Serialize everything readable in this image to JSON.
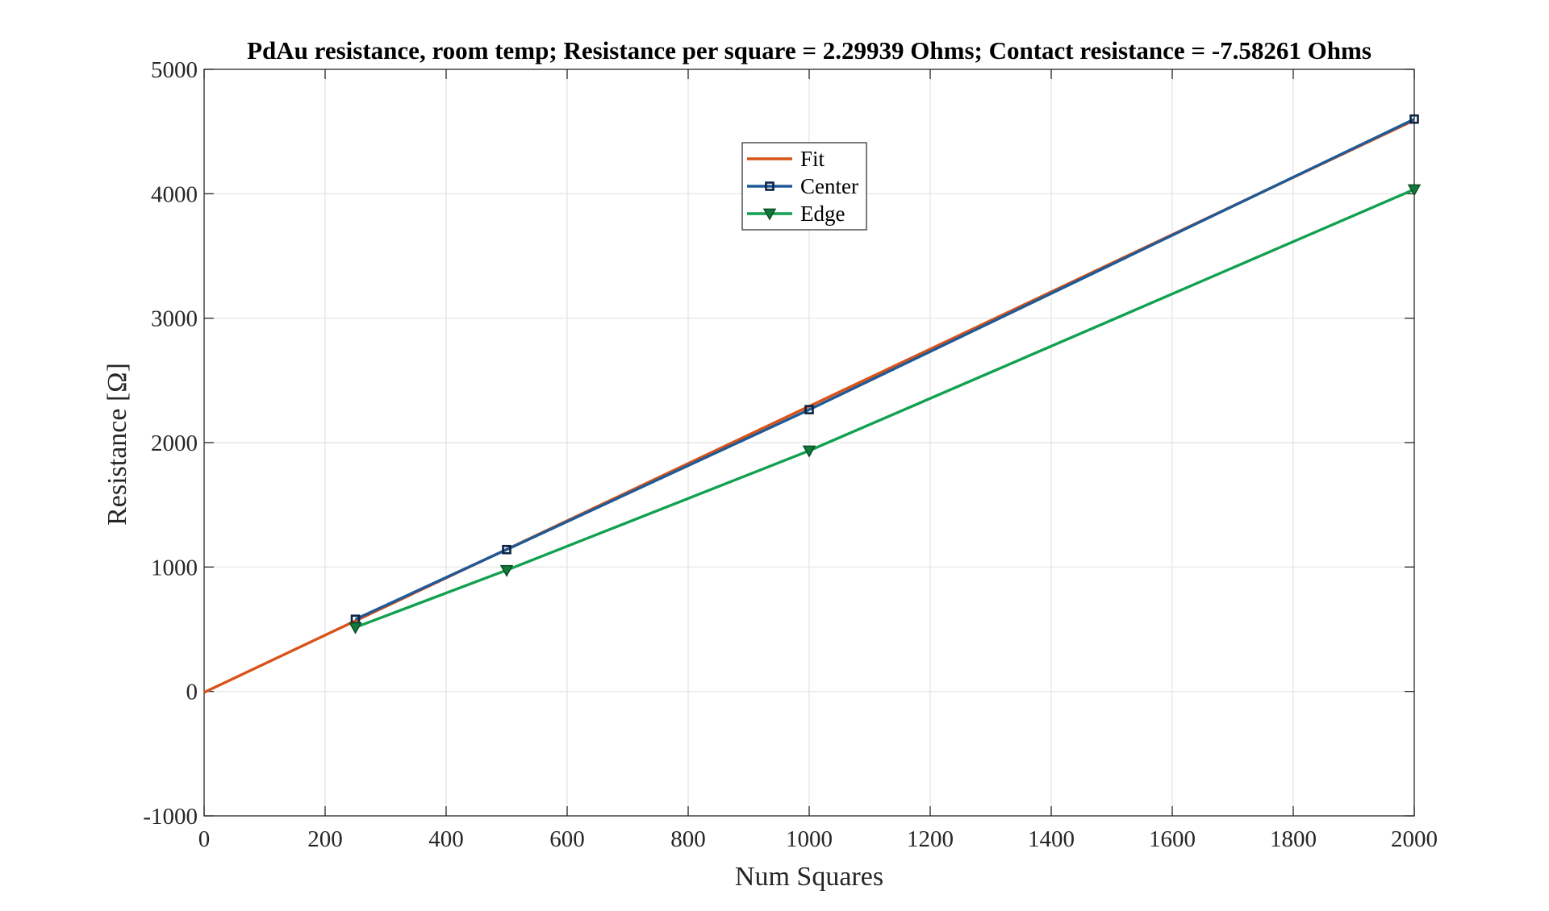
{
  "chart_data": {
    "type": "line",
    "title": "PdAu resistance, room temp; Resistance per square = 2.29939 Ohms; Contact resistance = -7.58261 Ohms",
    "xlabel": "Num Squares",
    "ylabel": "Resistance [Ω]",
    "xlim": [
      0,
      2000
    ],
    "ylim": [
      -1000,
      5000
    ],
    "xticks": [
      0,
      200,
      400,
      600,
      800,
      1000,
      1200,
      1400,
      1600,
      1800,
      2000
    ],
    "yticks": [
      -1000,
      0,
      1000,
      2000,
      3000,
      4000,
      5000
    ],
    "grid": true,
    "legend_position": "top-center",
    "series": [
      {
        "name": "Fit",
        "color": "#d95319",
        "marker": "none",
        "x": [
          0,
          2000
        ],
        "y": [
          -7.58,
          4591.2
        ]
      },
      {
        "name": "Center",
        "color": "#1f5a96",
        "marker": "square",
        "x": [
          250,
          500,
          1000,
          2000
        ],
        "y": [
          580,
          1140,
          2265,
          4600
        ]
      },
      {
        "name": "Edge",
        "color": "#12a150",
        "marker": "triangle-down",
        "x": [
          250,
          500,
          1000,
          2000
        ],
        "y": [
          515,
          975,
          1935,
          4035
        ]
      }
    ]
  }
}
